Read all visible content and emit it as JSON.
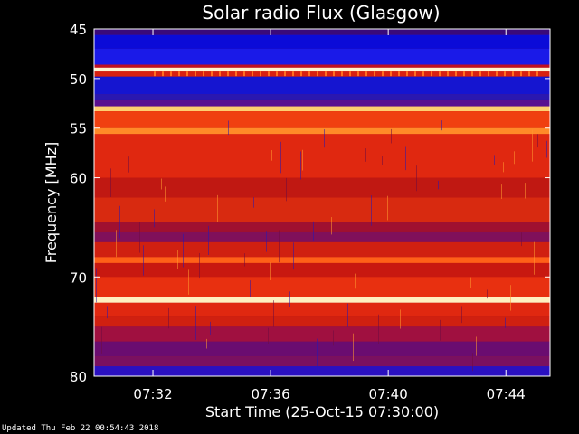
{
  "chart_data": {
    "type": "heatmap",
    "title": "Solar radio Flux (Glasgow)",
    "xlabel": "Start Time (25-Oct-15 07:30:00)",
    "ylabel": "Frequency [MHz]",
    "xlim": [
      "07:30:00",
      "07:45:30"
    ],
    "ylim": [
      45,
      80
    ],
    "y_scale": "linear, inverted (45 at top, 80 at bottom)",
    "x_ticks": [
      "07:32",
      "07:36",
      "07:40",
      "07:44"
    ],
    "y_ticks": [
      45,
      50,
      55,
      60,
      70,
      80
    ],
    "grid": false,
    "colormap": "blue-red-yellow-white",
    "bands": [
      {
        "from_mhz": 45.0,
        "to_mhz": 45.6,
        "color": "#3a0a7a"
      },
      {
        "from_mhz": 45.6,
        "to_mhz": 47.0,
        "color": "#0b0bd8"
      },
      {
        "from_mhz": 47.0,
        "to_mhz": 48.6,
        "color": "#1a1ae8"
      },
      {
        "from_mhz": 48.6,
        "to_mhz": 48.9,
        "color": "#c01020"
      },
      {
        "from_mhz": 48.9,
        "to_mhz": 49.3,
        "color": "#fff4d0"
      },
      {
        "from_mhz": 49.3,
        "to_mhz": 49.8,
        "color": "#d82010"
      },
      {
        "from_mhz": 49.8,
        "to_mhz": 51.6,
        "color": "#1515d0"
      },
      {
        "from_mhz": 51.6,
        "to_mhz": 52.2,
        "color": "#2a18b0"
      },
      {
        "from_mhz": 52.2,
        "to_mhz": 52.8,
        "color": "#5a1090"
      },
      {
        "from_mhz": 52.8,
        "to_mhz": 53.3,
        "color": "#ffcf70"
      },
      {
        "from_mhz": 53.3,
        "to_mhz": 55.0,
        "color": "#f04010"
      },
      {
        "from_mhz": 55.0,
        "to_mhz": 55.6,
        "color": "#ff8a28"
      },
      {
        "from_mhz": 55.6,
        "to_mhz": 60.0,
        "color": "#e02810"
      },
      {
        "from_mhz": 60.0,
        "to_mhz": 62.0,
        "color": "#c01812"
      },
      {
        "from_mhz": 62.0,
        "to_mhz": 64.5,
        "color": "#d82a10"
      },
      {
        "from_mhz": 64.5,
        "to_mhz": 65.5,
        "color": "#a01030"
      },
      {
        "from_mhz": 65.5,
        "to_mhz": 66.5,
        "color": "#80105a"
      },
      {
        "from_mhz": 66.5,
        "to_mhz": 68.0,
        "color": "#d02010"
      },
      {
        "from_mhz": 68.0,
        "to_mhz": 68.6,
        "color": "#ff6018"
      },
      {
        "from_mhz": 68.6,
        "to_mhz": 70.0,
        "color": "#c81810"
      },
      {
        "from_mhz": 70.0,
        "to_mhz": 72.0,
        "color": "#e83010"
      },
      {
        "from_mhz": 72.0,
        "to_mhz": 72.6,
        "color": "#fff0c0"
      },
      {
        "from_mhz": 72.6,
        "to_mhz": 74.0,
        "color": "#e02810"
      },
      {
        "from_mhz": 74.0,
        "to_mhz": 75.0,
        "color": "#d02010"
      },
      {
        "from_mhz": 75.0,
        "to_mhz": 76.5,
        "color": "#a01040"
      },
      {
        "from_mhz": 76.5,
        "to_mhz": 78.0,
        "color": "#6a0c70"
      },
      {
        "from_mhz": 78.0,
        "to_mhz": 79.0,
        "color": "#7a1060"
      },
      {
        "from_mhz": 79.0,
        "to_mhz": 80.0,
        "color": "#2a10c0"
      }
    ]
  },
  "footer": {
    "text": "Updated Thu Feb 22 00:54:43 2018"
  }
}
